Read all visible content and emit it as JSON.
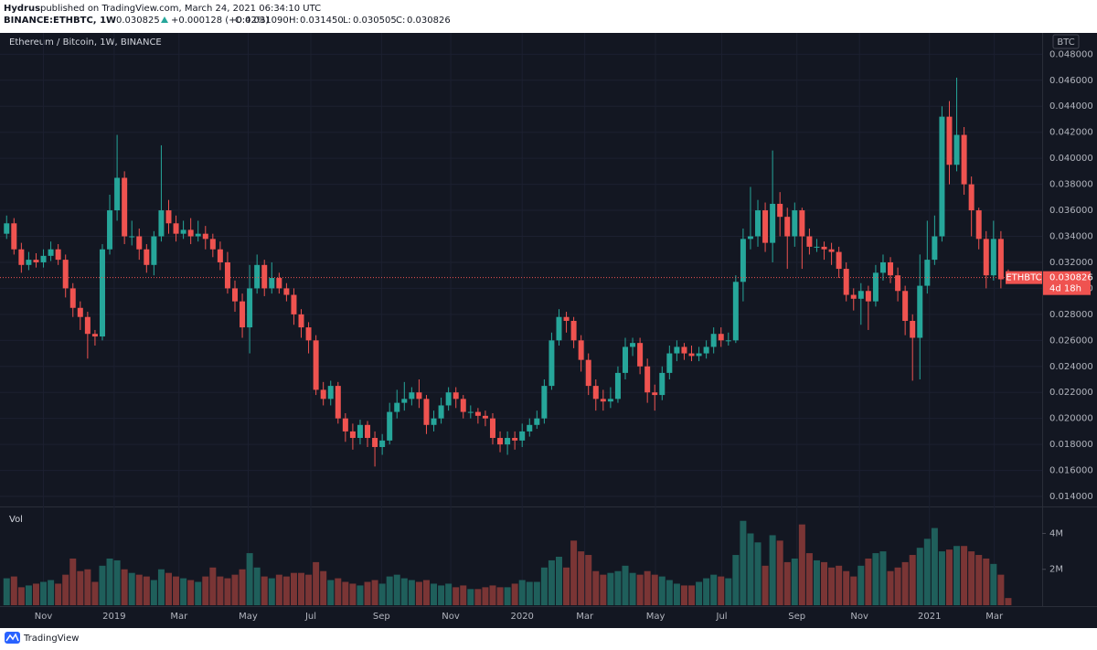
{
  "header": {
    "author": "Hydrus",
    "published": "published on TradingView.com, March 24, 2021 06:34:10 UTC",
    "symbol": "BINANCE:ETHBTC, 1W",
    "last": "0.030825",
    "change": "+0.000128 (+0.42%)",
    "ohlc": [
      {
        "label": "O:",
        "value": "0.031090"
      },
      {
        "label": "H:",
        "value": "0.031450"
      },
      {
        "label": "L:",
        "value": "0.030505"
      },
      {
        "label": "C:",
        "value": "0.030826"
      }
    ]
  },
  "footer": {
    "brand": "TradingView"
  },
  "chart_data": {
    "type": "candlestick",
    "title": "Ethereum / Bitcoin, 1W, BINANCE",
    "currency": "BTC",
    "volume_title": "Vol",
    "symbol_label": "ETHBTC",
    "countdown": "4d 18h",
    "up_color": "#26a69a",
    "down_color": "#ef5350",
    "volume_up_color": "#1f5f5b",
    "volume_down_color": "#7a3535",
    "grid": true,
    "open": [
      0.0342,
      0.035,
      0.033,
      0.0318,
      0.0322,
      0.032,
      0.0325,
      0.033,
      0.0322,
      0.03,
      0.0285,
      0.0278,
      0.0265,
      0.0263,
      0.033,
      0.036,
      0.0385,
      0.034,
      0.034,
      0.033,
      0.0318,
      0.034,
      0.036,
      0.035,
      0.0342,
      0.0345,
      0.034,
      0.0342,
      0.0338,
      0.033,
      0.032,
      0.03,
      0.029,
      0.027,
      0.03,
      0.0318,
      0.03,
      0.0308,
      0.03,
      0.0295,
      0.028,
      0.027,
      0.026,
      0.0222,
      0.0215,
      0.0225,
      0.02,
      0.019,
      0.0185,
      0.0195,
      0.0185,
      0.0178,
      0.0183,
      0.0205,
      0.0212,
      0.0215,
      0.022,
      0.0215,
      0.0195,
      0.02,
      0.021,
      0.022,
      0.0215,
      0.0205,
      0.0205,
      0.0202,
      0.02,
      0.0185,
      0.018,
      0.0185,
      0.0183,
      0.019,
      0.0195,
      0.02,
      0.0225,
      0.026,
      0.0278,
      0.0275,
      0.026,
      0.0245,
      0.0225,
      0.0215,
      0.0213,
      0.0215,
      0.0235,
      0.0255,
      0.0258,
      0.024,
      0.022,
      0.0218,
      0.0235,
      0.025,
      0.0255,
      0.025,
      0.0248,
      0.025,
      0.0255,
      0.0265,
      0.026,
      0.026,
      0.0305,
      0.0338,
      0.034,
      0.036,
      0.0335,
      0.0365,
      0.0355,
      0.034,
      0.036,
      0.034,
      0.0332,
      0.0332,
      0.033,
      0.0328,
      0.0315,
      0.0295,
      0.0292,
      0.0298,
      0.029,
      0.0312,
      0.032,
      0.031,
      0.0298,
      0.0275,
      0.0262,
      0.0302,
      0.0322,
      0.034,
      0.0432,
      0.0395,
      0.0418,
      0.038,
      0.036,
      0.0338,
      0.031,
      0.0338,
      0.03109
    ],
    "high": [
      0.0356,
      0.0354,
      0.0335,
      0.0328,
      0.0327,
      0.033,
      0.0336,
      0.0334,
      0.0326,
      0.0304,
      0.029,
      0.0282,
      0.0268,
      0.0334,
      0.0372,
      0.0418,
      0.039,
      0.0352,
      0.0346,
      0.0334,
      0.0344,
      0.041,
      0.0368,
      0.0356,
      0.0352,
      0.0354,
      0.0352,
      0.0348,
      0.0342,
      0.0336,
      0.0328,
      0.0306,
      0.0296,
      0.0318,
      0.0326,
      0.0322,
      0.032,
      0.0312,
      0.0304,
      0.03,
      0.0284,
      0.0274,
      0.0264,
      0.0228,
      0.0229,
      0.0228,
      0.0204,
      0.0196,
      0.0199,
      0.0198,
      0.019,
      0.0188,
      0.0212,
      0.0222,
      0.0228,
      0.0224,
      0.023,
      0.0218,
      0.0206,
      0.0216,
      0.0224,
      0.0224,
      0.0218,
      0.021,
      0.0208,
      0.0206,
      0.0204,
      0.019,
      0.019,
      0.019,
      0.0196,
      0.02,
      0.0206,
      0.023,
      0.0266,
      0.0284,
      0.0282,
      0.0278,
      0.0264,
      0.025,
      0.023,
      0.0222,
      0.0224,
      0.024,
      0.0262,
      0.0262,
      0.0262,
      0.0246,
      0.0226,
      0.024,
      0.0256,
      0.026,
      0.0258,
      0.0256,
      0.0255,
      0.026,
      0.027,
      0.027,
      0.0266,
      0.031,
      0.0346,
      0.0378,
      0.0368,
      0.0366,
      0.0406,
      0.0374,
      0.0362,
      0.0366,
      0.0362,
      0.0346,
      0.0338,
      0.0336,
      0.0335,
      0.0332,
      0.032,
      0.03,
      0.0304,
      0.0302,
      0.0318,
      0.0326,
      0.0324,
      0.0316,
      0.0302,
      0.028,
      0.0326,
      0.0352,
      0.0356,
      0.044,
      0.0444,
      0.0462,
      0.0424,
      0.0386,
      0.0362,
      0.0344,
      0.0352,
      0.0344,
      0.03145
    ],
    "low": [
      0.0338,
      0.0326,
      0.0312,
      0.0314,
      0.0316,
      0.0316,
      0.0321,
      0.0318,
      0.0293,
      0.0278,
      0.0268,
      0.0246,
      0.0256,
      0.026,
      0.0326,
      0.0352,
      0.0334,
      0.0333,
      0.0322,
      0.0312,
      0.031,
      0.0336,
      0.0342,
      0.0336,
      0.0338,
      0.0334,
      0.0336,
      0.033,
      0.0324,
      0.0314,
      0.0296,
      0.0282,
      0.0262,
      0.025,
      0.0296,
      0.0294,
      0.0296,
      0.0296,
      0.029,
      0.0272,
      0.0262,
      0.025,
      0.0218,
      0.021,
      0.021,
      0.0196,
      0.0182,
      0.0176,
      0.018,
      0.0178,
      0.0163,
      0.0172,
      0.018,
      0.02,
      0.0206,
      0.021,
      0.0208,
      0.0188,
      0.019,
      0.0196,
      0.0206,
      0.0208,
      0.02,
      0.02,
      0.0196,
      0.0194,
      0.018,
      0.0174,
      0.0172,
      0.0176,
      0.0178,
      0.0186,
      0.0192,
      0.0196,
      0.0222,
      0.0256,
      0.0266,
      0.0254,
      0.0236,
      0.0218,
      0.0206,
      0.0206,
      0.0208,
      0.0212,
      0.023,
      0.0248,
      0.0234,
      0.0212,
      0.0206,
      0.0214,
      0.023,
      0.0244,
      0.0245,
      0.0244,
      0.0244,
      0.0246,
      0.025,
      0.0255,
      0.0256,
      0.0258,
      0.029,
      0.033,
      0.0332,
      0.0328,
      0.032,
      0.034,
      0.0315,
      0.0332,
      0.0315,
      0.0326,
      0.0328,
      0.0322,
      0.0318,
      0.0308,
      0.029,
      0.0283,
      0.0272,
      0.0268,
      0.0286,
      0.0306,
      0.0304,
      0.029,
      0.0264,
      0.0229,
      0.023,
      0.0296,
      0.0318,
      0.0336,
      0.038,
      0.039,
      0.0372,
      0.034,
      0.033,
      0.03,
      0.0306,
      0.03,
      0.030505
    ],
    "close": [
      0.035,
      0.033,
      0.0318,
      0.0322,
      0.032,
      0.0325,
      0.033,
      0.0322,
      0.03,
      0.0285,
      0.0278,
      0.0265,
      0.0263,
      0.033,
      0.036,
      0.0385,
      0.034,
      0.034,
      0.033,
      0.0318,
      0.034,
      0.036,
      0.035,
      0.0342,
      0.0345,
      0.034,
      0.0342,
      0.0338,
      0.033,
      0.032,
      0.03,
      0.029,
      0.027,
      0.03,
      0.0318,
      0.03,
      0.0308,
      0.03,
      0.0295,
      0.028,
      0.027,
      0.026,
      0.0222,
      0.0215,
      0.0225,
      0.02,
      0.019,
      0.0185,
      0.0195,
      0.0185,
      0.0178,
      0.0183,
      0.0205,
      0.0212,
      0.0215,
      0.022,
      0.0215,
      0.0195,
      0.02,
      0.021,
      0.022,
      0.0215,
      0.0205,
      0.0205,
      0.0202,
      0.02,
      0.0185,
      0.018,
      0.0185,
      0.0183,
      0.019,
      0.0195,
      0.02,
      0.0225,
      0.026,
      0.0278,
      0.0275,
      0.026,
      0.0245,
      0.0225,
      0.0215,
      0.0213,
      0.0215,
      0.0235,
      0.0255,
      0.0258,
      0.024,
      0.022,
      0.0218,
      0.0235,
      0.025,
      0.0255,
      0.025,
      0.0248,
      0.025,
      0.0255,
      0.0265,
      0.026,
      0.026,
      0.0305,
      0.0338,
      0.034,
      0.036,
      0.0335,
      0.0365,
      0.0355,
      0.034,
      0.036,
      0.034,
      0.0332,
      0.0332,
      0.033,
      0.0328,
      0.0315,
      0.0295,
      0.0292,
      0.0298,
      0.029,
      0.0312,
      0.032,
      0.031,
      0.0298,
      0.0275,
      0.0262,
      0.0302,
      0.0322,
      0.034,
      0.0432,
      0.0395,
      0.0418,
      0.038,
      0.036,
      0.0338,
      0.031,
      0.0338,
      0.030698,
      0.030826
    ],
    "volume": [
      1500000,
      1600000,
      1000000,
      1100000,
      1200000,
      1300000,
      1400000,
      1200000,
      1700000,
      2600000,
      1900000,
      2000000,
      1300000,
      2200000,
      2600000,
      2500000,
      2000000,
      1800000,
      1700000,
      1600000,
      1400000,
      2000000,
      1800000,
      1600000,
      1500000,
      1400000,
      1300000,
      1600000,
      2100000,
      1600000,
      1500000,
      1700000,
      2000000,
      2900000,
      2100000,
      1600000,
      1500000,
      1700000,
      1600000,
      1800000,
      1800000,
      1700000,
      2400000,
      1900000,
      1400000,
      1500000,
      1300000,
      1200000,
      1100000,
      1300000,
      1400000,
      1200000,
      1600000,
      1700000,
      1500000,
      1400000,
      1300000,
      1400000,
      1200000,
      1100000,
      1200000,
      1000000,
      1100000,
      900000,
      900000,
      1000000,
      1100000,
      1000000,
      1000000,
      1200000,
      1400000,
      1300000,
      1300000,
      2100000,
      2500000,
      2700000,
      2100000,
      3600000,
      3000000,
      2800000,
      1900000,
      1700000,
      1800000,
      1900000,
      2200000,
      1800000,
      1700000,
      1900000,
      1700000,
      1600000,
      1400000,
      1200000,
      1100000,
      1100000,
      1300000,
      1500000,
      1700000,
      1600000,
      1500000,
      2800000,
      4700000,
      4000000,
      3500000,
      2200000,
      3900000,
      3600000,
      2400000,
      2600000,
      4500000,
      2900000,
      2500000,
      2400000,
      2100000,
      2200000,
      1900000,
      1600000,
      2200000,
      2600000,
      2900000,
      3000000,
      1900000,
      2100000,
      2400000,
      2800000,
      3200000,
      3700000,
      4300000,
      3000000,
      3100000,
      3300000,
      3300000,
      3000000,
      2800000,
      2600000,
      2300000,
      1700000,
      400000
    ],
    "xlim": [
      -0.9,
      140.6
    ],
    "xticks": [
      {
        "value": 5,
        "label": "Nov"
      },
      {
        "value": 14.6,
        "label": "2019"
      },
      {
        "value": 23.4,
        "label": "Mar"
      },
      {
        "value": 32.8,
        "label": "May"
      },
      {
        "value": 41.3,
        "label": "Jul"
      },
      {
        "value": 50.9,
        "label": "Sep"
      },
      {
        "value": 60.3,
        "label": "Nov"
      },
      {
        "value": 70,
        "label": "2020"
      },
      {
        "value": 78.5,
        "label": "Mar"
      },
      {
        "value": 88.1,
        "label": "May"
      },
      {
        "value": 97.1,
        "label": "Jul"
      },
      {
        "value": 107.3,
        "label": "Sep"
      },
      {
        "value": 115.8,
        "label": "Nov"
      },
      {
        "value": 125.3,
        "label": "2021"
      },
      {
        "value": 134.1,
        "label": "Mar"
      }
    ],
    "ylim": [
      0.0133,
      0.0495
    ],
    "yticks": [
      {
        "value": 0.014,
        "label": "0.014000"
      },
      {
        "value": 0.016,
        "label": "0.016000"
      },
      {
        "value": 0.018,
        "label": "0.018000"
      },
      {
        "value": 0.02,
        "label": "0.020000"
      },
      {
        "value": 0.022,
        "label": "0.022000"
      },
      {
        "value": 0.024,
        "label": "0.024000"
      },
      {
        "value": 0.026,
        "label": "0.026000"
      },
      {
        "value": 0.028,
        "label": "0.028000"
      },
      {
        "value": 0.03,
        "label": "0.030000"
      },
      {
        "value": 0.032,
        "label": "0.032000"
      },
      {
        "value": 0.034,
        "label": "0.034000"
      },
      {
        "value": 0.036,
        "label": "0.036000"
      },
      {
        "value": 0.038,
        "label": "0.038000"
      },
      {
        "value": 0.04,
        "label": "0.040000"
      },
      {
        "value": 0.042,
        "label": "0.042000"
      },
      {
        "value": 0.044,
        "label": "0.044000"
      },
      {
        "value": 0.046,
        "label": "0.046000"
      },
      {
        "value": 0.048,
        "label": "0.048000"
      }
    ],
    "volume_ylim": [
      0,
      5400000
    ],
    "volume_ticks": [
      {
        "value": 2000000,
        "label": "2M"
      },
      {
        "value": 4000000,
        "label": "4M"
      }
    ]
  }
}
